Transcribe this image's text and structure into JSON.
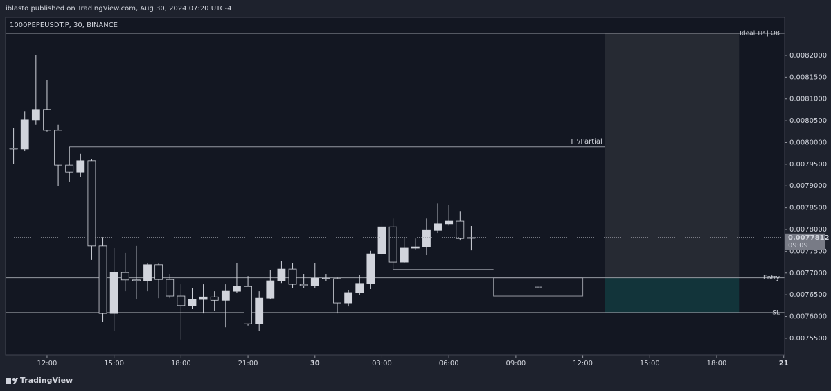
{
  "header": "iblasto published on TradingView.com, Aug 30, 2024 07:20 UTC-4",
  "footer": "TradingView",
  "chart_data": {
    "type": "candlestick",
    "title": "1000PEPEUSDT.P, 30, BINANCE",
    "x": [
      10.5,
      11,
      11.5,
      12,
      12.5,
      13,
      13.5,
      14,
      14.5,
      15,
      15.5,
      16,
      16.5,
      17,
      17.5,
      18,
      18.5,
      19,
      19.5,
      20,
      20.5,
      21,
      21.5,
      22,
      22.5,
      23,
      23.5,
      24,
      24.5,
      25,
      25.5,
      26,
      26.5,
      27,
      27.5,
      28,
      28.5,
      29,
      29.5,
      30,
      30.5,
      31
    ],
    "open": [
      0.007987,
      0.007985,
      0.008052,
      0.008076,
      0.008028,
      0.007948,
      0.007932,
      0.007958,
      0.007762,
      0.007607,
      0.007701,
      0.007684,
      0.007682,
      0.007719,
      0.007685,
      0.007647,
      0.007625,
      0.007639,
      0.007645,
      0.007637,
      0.007658,
      0.007669,
      0.007583,
      0.007642,
      0.007682,
      0.007709,
      0.007674,
      0.007671,
      0.007688,
      0.007687,
      0.007631,
      0.007655,
      0.007676,
      0.007744,
      0.007806,
      0.007725,
      0.007757,
      0.00776,
      0.007798,
      0.007813,
      0.007819,
      0.007781
    ],
    "high": [
      0.008033,
      0.008072,
      0.0082,
      0.008144,
      0.008041,
      0.00799,
      0.007974,
      0.007961,
      0.007782,
      0.007757,
      0.007746,
      0.007762,
      0.007722,
      0.007722,
      0.007698,
      0.007674,
      0.007666,
      0.007674,
      0.007658,
      0.007674,
      0.007722,
      0.007693,
      0.007658,
      0.007706,
      0.007728,
      0.007722,
      0.007698,
      0.007722,
      0.007698,
      0.00769,
      0.00766,
      0.007695,
      0.007751,
      0.00782,
      0.007825,
      0.007782,
      0.007779,
      0.007825,
      0.00786,
      0.007857,
      0.007841,
      0.007808
    ],
    "low": [
      0.00795,
      0.00798,
      0.008041,
      0.008025,
      0.0079,
      0.00791,
      0.00792,
      0.00773,
      0.007587,
      0.007566,
      0.007658,
      0.007639,
      0.007658,
      0.007642,
      0.007642,
      0.007547,
      0.007618,
      0.007607,
      0.007613,
      0.007575,
      0.007655,
      0.007579,
      0.007566,
      0.007639,
      0.007677,
      0.007666,
      0.007665,
      0.007666,
      0.007682,
      0.007607,
      0.007623,
      0.00765,
      0.007663,
      0.007738,
      0.007709,
      0.007722,
      0.007754,
      0.007741,
      0.007792,
      0.007809,
      0.007776,
      0.007752
    ],
    "close": [
      0.007985,
      0.008052,
      0.008076,
      0.008028,
      0.007948,
      0.007932,
      0.007958,
      0.007762,
      0.007607,
      0.007701,
      0.007684,
      0.007682,
      0.007719,
      0.007685,
      0.007647,
      0.007625,
      0.007639,
      0.007645,
      0.007637,
      0.007658,
      0.007669,
      0.007583,
      0.007642,
      0.007682,
      0.007709,
      0.007674,
      0.007671,
      0.007688,
      0.007687,
      0.007631,
      0.007655,
      0.007676,
      0.007744,
      0.007806,
      0.007725,
      0.007757,
      0.00776,
      0.007798,
      0.007813,
      0.007819,
      0.007779,
      0.007781
    ],
    "up_color": "#d1d4dc",
    "down_color": "#131722",
    "xlim": [
      10.14,
      45.04
    ],
    "xticks": [
      {
        "value": 12,
        "label": "12:00"
      },
      {
        "value": 15,
        "label": "15:00"
      },
      {
        "value": 18,
        "label": "18:00"
      },
      {
        "value": 21,
        "label": "21:00"
      },
      {
        "value": 24,
        "label": "30"
      },
      {
        "value": 27,
        "label": "03:00"
      },
      {
        "value": 30,
        "label": "06:00"
      },
      {
        "value": 33,
        "label": "09:00"
      },
      {
        "value": 36,
        "label": "12:00"
      },
      {
        "value": 39,
        "label": "15:00"
      },
      {
        "value": 42,
        "label": "18:00"
      },
      {
        "value": 45,
        "label": "21"
      }
    ],
    "ylim": [
      0.0075116,
      0.0082876
    ],
    "yticks": [
      {
        "value": 0.00755,
        "label": "0.0075500"
      },
      {
        "value": 0.0076,
        "label": "0.0076000"
      },
      {
        "value": 0.00765,
        "label": "0.0076500"
      },
      {
        "value": 0.0077,
        "label": "0.0077000"
      },
      {
        "value": 0.00775,
        "label": "0.0077500"
      },
      {
        "value": 0.0078,
        "label": "0.0078000"
      },
      {
        "value": 0.00785,
        "label": "0.0078500"
      },
      {
        "value": 0.0079,
        "label": "0.0079000"
      },
      {
        "value": 0.00795,
        "label": "0.0079500"
      },
      {
        "value": 0.008,
        "label": "0.0080000"
      },
      {
        "value": 0.00805,
        "label": "0.0080500"
      },
      {
        "value": 0.0081,
        "label": "0.0081000"
      },
      {
        "value": 0.00815,
        "label": "0.0081500"
      },
      {
        "value": 0.0082,
        "label": "0.0082000"
      }
    ],
    "last_price": {
      "value": 0.0077812,
      "label": "0.0077812"
    },
    "countdown": "09:09",
    "levels": [
      {
        "label": "Ideal TP | OB",
        "value": 0.008251
      },
      {
        "label": "TP/Partial",
        "value": 0.00799,
        "x_start": 13.0
      },
      {
        "label": "Entry",
        "value": 0.007689
      },
      {
        "label": "SL",
        "value": 0.007609
      }
    ],
    "segment": {
      "value": 0.007708,
      "x_start": 27.5,
      "x_end": 32.0
    },
    "box": {
      "label": "---",
      "top": 0.007689,
      "bottom": 0.007647,
      "x_start": 32.0,
      "x_end": 36.0
    },
    "position": {
      "x_start": 37.0,
      "x_end": 43.0,
      "target": 0.008251,
      "entry": 0.007689,
      "stop": 0.007609,
      "target_color": "#262a33",
      "stop_color": "#12343a"
    }
  }
}
